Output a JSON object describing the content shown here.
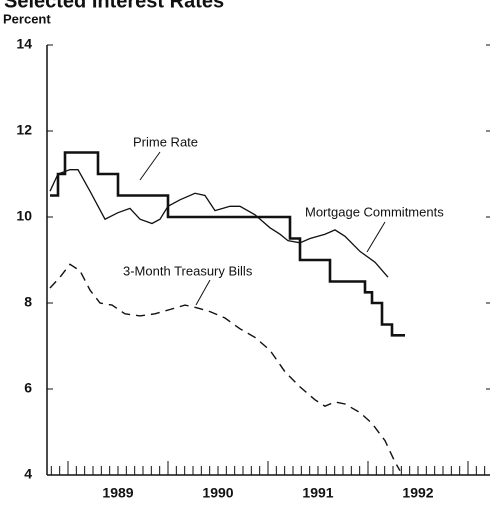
{
  "chart_data": {
    "type": "line",
    "title": "Selected Interest Rates",
    "y_label": "Percent",
    "xlim": [
      1988.79,
      1993.22
    ],
    "xticks": [
      {
        "value": 1989.5,
        "label": "1989"
      },
      {
        "value": 1990.5,
        "label": "1990"
      },
      {
        "value": 1991.5,
        "label": "1991"
      },
      {
        "value": 1992.5,
        "label": "1992"
      }
    ],
    "ylim": [
      4,
      14
    ],
    "yticks": [
      4,
      6,
      8,
      10,
      12,
      14
    ],
    "series": [
      {
        "name": "Prime Rate",
        "color": "#111111",
        "style": "solid-thick",
        "x": [
          1988.82,
          1988.9,
          1988.9,
          1988.97,
          1988.97,
          1989.3,
          1989.3,
          1989.5,
          1989.5,
          1990.0,
          1990.0,
          1991.22,
          1991.22,
          1991.32,
          1991.32,
          1991.62,
          1991.62,
          1991.97,
          1991.97,
          1992.04,
          1992.04,
          1992.14,
          1992.14,
          1992.24,
          1992.24,
          1992.37
        ],
        "values": [
          10.5,
          10.5,
          11,
          11,
          11.5,
          11.5,
          11,
          11,
          10.5,
          10.5,
          10,
          10,
          9.5,
          9.5,
          9,
          9,
          8.5,
          8.5,
          8.25,
          8.25,
          8,
          8,
          7.5,
          7.5,
          7.25,
          7.25
        ]
      },
      {
        "name": "Mortgage Commitments",
        "color": "#111111",
        "style": "solid-thin",
        "x": [
          1988.82,
          1988.9,
          1989.02,
          1989.1,
          1989.22,
          1989.37,
          1989.5,
          1989.62,
          1989.72,
          1989.84,
          1989.92,
          1990.0,
          1990.12,
          1990.27,
          1990.37,
          1990.47,
          1990.62,
          1990.72,
          1990.87,
          1991.02,
          1991.12,
          1991.2,
          1991.32,
          1991.42,
          1991.57,
          1991.67,
          1991.77,
          1991.92,
          1992.07,
          1992.2
        ],
        "values": [
          10.6,
          11.0,
          11.1,
          11.1,
          10.6,
          9.95,
          10.1,
          10.2,
          9.95,
          9.85,
          9.95,
          10.25,
          10.4,
          10.55,
          10.5,
          10.15,
          10.25,
          10.25,
          10.05,
          9.75,
          9.6,
          9.45,
          9.4,
          9.5,
          9.6,
          9.7,
          9.55,
          9.2,
          8.95,
          8.6
        ]
      },
      {
        "name": "3-Month Treasury Bills",
        "color": "#111111",
        "style": "dashed",
        "x": [
          1988.82,
          1988.92,
          1989.02,
          1989.12,
          1989.22,
          1989.32,
          1989.44,
          1989.57,
          1989.72,
          1989.87,
          1990.02,
          1990.17,
          1990.27,
          1990.42,
          1990.57,
          1990.72,
          1990.87,
          1991.02,
          1991.17,
          1991.32,
          1991.47,
          1991.57,
          1991.67,
          1991.77,
          1991.92,
          1992.04,
          1992.17,
          1992.27,
          1992.32
        ],
        "values": [
          8.35,
          8.6,
          8.9,
          8.75,
          8.3,
          8.0,
          7.95,
          7.75,
          7.7,
          7.75,
          7.85,
          7.95,
          7.9,
          7.8,
          7.65,
          7.4,
          7.2,
          6.9,
          6.4,
          6.05,
          5.75,
          5.6,
          5.7,
          5.65,
          5.45,
          5.2,
          4.8,
          4.3,
          4.1
        ]
      }
    ]
  }
}
